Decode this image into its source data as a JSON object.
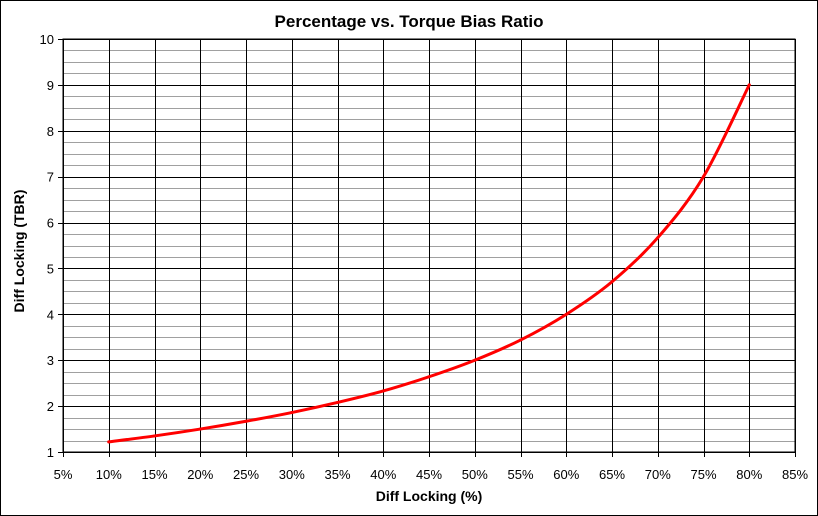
{
  "chart_data": {
    "type": "line",
    "title": "Percentage vs. Torque Bias Ratio",
    "xlabel": "Diff Locking (%)",
    "ylabel": "Diff Locking (TBR)",
    "xlim": [
      5,
      85
    ],
    "ylim": [
      1,
      10
    ],
    "x_ticks": [
      "5%",
      "10%",
      "15%",
      "20%",
      "25%",
      "30%",
      "35%",
      "40%",
      "45%",
      "50%",
      "55%",
      "60%",
      "65%",
      "70%",
      "75%",
      "80%",
      "85%"
    ],
    "y_ticks": [
      "1",
      "2",
      "3",
      "4",
      "5",
      "6",
      "7",
      "8",
      "9",
      "10"
    ],
    "grid": true,
    "legend": "none",
    "series": [
      {
        "color": "#ff0000",
        "x": [
          10,
          15,
          20,
          25,
          30,
          35,
          40,
          45,
          50,
          55,
          60,
          65,
          70,
          75,
          80
        ],
        "y": [
          1.22,
          1.35,
          1.5,
          1.67,
          1.86,
          2.08,
          2.33,
          2.64,
          3.0,
          3.44,
          4.0,
          4.71,
          5.67,
          7.0,
          9.0
        ]
      }
    ]
  }
}
